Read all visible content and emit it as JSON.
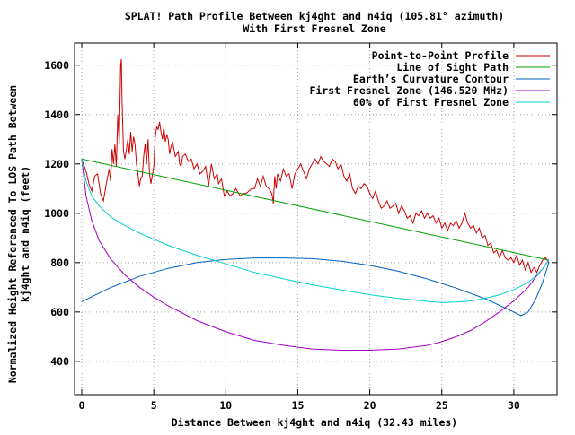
{
  "chart_data": {
    "type": "line",
    "title": "SPLAT! Path Profile Between kj4ght and n4iq (105.81° azimuth)",
    "subtitle": "With First Fresnel Zone",
    "xlabel": "Distance Between kj4ght and n4iq (32.43 miles)",
    "ylabel_line1": "Normalized Height Referenced To LOS Path Between",
    "ylabel_line2": "kj4ght and n4iq (feet)",
    "xlim": [
      -0.5,
      33.0
    ],
    "ylim": [
      265,
      1690
    ],
    "x_ticks": [
      0,
      5,
      10,
      15,
      20,
      25,
      30
    ],
    "y_ticks": [
      400,
      600,
      800,
      1000,
      1200,
      1400,
      1600
    ],
    "grid": true,
    "legend_position": "top-right",
    "series": [
      {
        "name": "Point-to-Point Profile",
        "color": "#cc0000",
        "points": [
          [
            0,
            1220
          ],
          [
            0.3,
            1170
          ],
          [
            0.5,
            1120
          ],
          [
            0.7,
            1090
          ],
          [
            0.9,
            1150
          ],
          [
            1.1,
            1160
          ],
          [
            1.3,
            1080
          ],
          [
            1.5,
            1050
          ],
          [
            1.7,
            1120
          ],
          [
            1.9,
            1180
          ],
          [
            2.0,
            1130
          ],
          [
            2.1,
            1260
          ],
          [
            2.2,
            1200
          ],
          [
            2.3,
            1280
          ],
          [
            2.4,
            1190
          ],
          [
            2.5,
            1400
          ],
          [
            2.6,
            1280
          ],
          [
            2.7,
            1600
          ],
          [
            2.75,
            1625
          ],
          [
            2.8,
            1450
          ],
          [
            2.9,
            1250
          ],
          [
            3.0,
            1220
          ],
          [
            3.2,
            1300
          ],
          [
            3.3,
            1240
          ],
          [
            3.4,
            1330
          ],
          [
            3.5,
            1250
          ],
          [
            3.6,
            1310
          ],
          [
            3.7,
            1280
          ],
          [
            3.8,
            1200
          ],
          [
            3.9,
            1160
          ],
          [
            4.0,
            1110
          ],
          [
            4.1,
            1140
          ],
          [
            4.2,
            1150
          ],
          [
            4.3,
            1230
          ],
          [
            4.4,
            1280
          ],
          [
            4.5,
            1200
          ],
          [
            4.6,
            1300
          ],
          [
            4.7,
            1160
          ],
          [
            4.8,
            1120
          ],
          [
            5.0,
            1190
          ],
          [
            5.1,
            1310
          ],
          [
            5.2,
            1350
          ],
          [
            5.3,
            1340
          ],
          [
            5.4,
            1370
          ],
          [
            5.5,
            1330
          ],
          [
            5.6,
            1300
          ],
          [
            5.7,
            1350
          ],
          [
            5.8,
            1290
          ],
          [
            5.9,
            1320
          ],
          [
            6.0,
            1300
          ],
          [
            6.1,
            1240
          ],
          [
            6.2,
            1270
          ],
          [
            6.3,
            1290
          ],
          [
            6.5,
            1230
          ],
          [
            6.7,
            1250
          ],
          [
            6.8,
            1200
          ],
          [
            6.9,
            1190
          ],
          [
            7.0,
            1230
          ],
          [
            7.2,
            1240
          ],
          [
            7.4,
            1210
          ],
          [
            7.6,
            1220
          ],
          [
            7.8,
            1180
          ],
          [
            8.0,
            1200
          ],
          [
            8.2,
            1160
          ],
          [
            8.4,
            1170
          ],
          [
            8.6,
            1190
          ],
          [
            8.8,
            1110
          ],
          [
            9.0,
            1200
          ],
          [
            9.2,
            1140
          ],
          [
            9.4,
            1160
          ],
          [
            9.5,
            1120
          ],
          [
            9.7,
            1140
          ],
          [
            9.9,
            1070
          ],
          [
            10.1,
            1090
          ],
          [
            10.3,
            1070
          ],
          [
            10.5,
            1080
          ],
          [
            10.7,
            1100
          ],
          [
            10.9,
            1080
          ],
          [
            11.0,
            1070
          ],
          [
            11.2,
            1080
          ],
          [
            11.4,
            1080
          ],
          [
            11.6,
            1090
          ],
          [
            11.8,
            1100
          ],
          [
            12.0,
            1100
          ],
          [
            12.2,
            1140
          ],
          [
            12.4,
            1110
          ],
          [
            12.6,
            1150
          ],
          [
            12.8,
            1110
          ],
          [
            13.0,
            1100
          ],
          [
            13.2,
            1080
          ],
          [
            13.3,
            1040
          ],
          [
            13.4,
            1150
          ],
          [
            13.5,
            1100
          ],
          [
            13.6,
            1160
          ],
          [
            13.8,
            1130
          ],
          [
            14.0,
            1180
          ],
          [
            14.2,
            1150
          ],
          [
            14.4,
            1160
          ],
          [
            14.6,
            1100
          ],
          [
            14.8,
            1160
          ],
          [
            15.0,
            1180
          ],
          [
            15.2,
            1200
          ],
          [
            15.4,
            1170
          ],
          [
            15.6,
            1140
          ],
          [
            15.8,
            1180
          ],
          [
            16.0,
            1200
          ],
          [
            16.2,
            1220
          ],
          [
            16.4,
            1200
          ],
          [
            16.6,
            1230
          ],
          [
            16.8,
            1210
          ],
          [
            17.0,
            1200
          ],
          [
            17.2,
            1190
          ],
          [
            17.4,
            1220
          ],
          [
            17.6,
            1210
          ],
          [
            17.8,
            1180
          ],
          [
            18.0,
            1200
          ],
          [
            18.2,
            1150
          ],
          [
            18.4,
            1130
          ],
          [
            18.6,
            1160
          ],
          [
            18.8,
            1100
          ],
          [
            19.0,
            1080
          ],
          [
            19.2,
            1110
          ],
          [
            19.4,
            1100
          ],
          [
            19.6,
            1120
          ],
          [
            19.8,
            1110
          ],
          [
            20.0,
            1080
          ],
          [
            20.2,
            1060
          ],
          [
            20.4,
            1090
          ],
          [
            20.6,
            1050
          ],
          [
            20.8,
            1020
          ],
          [
            21.0,
            1030
          ],
          [
            21.2,
            1050
          ],
          [
            21.4,
            1020
          ],
          [
            21.6,
            1030
          ],
          [
            21.8,
            1040
          ],
          [
            22.0,
            1000
          ],
          [
            22.2,
            1030
          ],
          [
            22.4,
            1010
          ],
          [
            22.6,
            980
          ],
          [
            22.8,
            990
          ],
          [
            23.0,
            960
          ],
          [
            23.2,
            1000
          ],
          [
            23.4,
            990
          ],
          [
            23.6,
            1010
          ],
          [
            23.8,
            980
          ],
          [
            24.0,
            1000
          ],
          [
            24.2,
            980
          ],
          [
            24.4,
            990
          ],
          [
            24.6,
            960
          ],
          [
            24.8,
            980
          ],
          [
            25.0,
            940
          ],
          [
            25.2,
            960
          ],
          [
            25.4,
            930
          ],
          [
            25.6,
            960
          ],
          [
            25.8,
            950
          ],
          [
            26.0,
            970
          ],
          [
            26.2,
            940
          ],
          [
            26.4,
            960
          ],
          [
            26.6,
            1000
          ],
          [
            26.8,
            960
          ],
          [
            27.0,
            940
          ],
          [
            27.2,
            950
          ],
          [
            27.4,
            920
          ],
          [
            27.6,
            940
          ],
          [
            27.8,
            900
          ],
          [
            28.0,
            910
          ],
          [
            28.2,
            870
          ],
          [
            28.4,
            880
          ],
          [
            28.6,
            840
          ],
          [
            28.8,
            850
          ],
          [
            29.0,
            820
          ],
          [
            29.2,
            850
          ],
          [
            29.4,
            820
          ],
          [
            29.6,
            810
          ],
          [
            29.8,
            820
          ],
          [
            30.0,
            800
          ],
          [
            30.2,
            830
          ],
          [
            30.4,
            790
          ],
          [
            30.6,
            810
          ],
          [
            30.8,
            770
          ],
          [
            31.0,
            800
          ],
          [
            31.2,
            760
          ],
          [
            31.4,
            780
          ],
          [
            31.6,
            760
          ],
          [
            31.8,
            790
          ],
          [
            32.0,
            810
          ],
          [
            32.2,
            820
          ],
          [
            32.43,
            800
          ]
        ]
      },
      {
        "name": "Line of Sight Path",
        "color": "#00a000",
        "points": [
          [
            0,
            1220
          ],
          [
            32.43,
            810
          ]
        ]
      },
      {
        "name": "Earth’s Curvature Contour",
        "color": "#0060c0",
        "points": [
          [
            0,
            642
          ],
          [
            2,
            699
          ],
          [
            4,
            744
          ],
          [
            6,
            777
          ],
          [
            8,
            800
          ],
          [
            10,
            813
          ],
          [
            12,
            819
          ],
          [
            14,
            819
          ],
          [
            16,
            816
          ],
          [
            18,
            806
          ],
          [
            20,
            789
          ],
          [
            22,
            765
          ],
          [
            24,
            734
          ],
          [
            26,
            697
          ],
          [
            28,
            654
          ],
          [
            30,
            600
          ],
          [
            30.5,
            585
          ],
          [
            31,
            600
          ],
          [
            31.5,
            650
          ],
          [
            32,
            720
          ],
          [
            32.43,
            800
          ]
        ]
      },
      {
        "name": "First Fresnel Zone (146.520 MHz)",
        "color": "#a000c0",
        "points": [
          [
            0,
            1220
          ],
          [
            0.3,
            1070
          ],
          [
            0.7,
            970
          ],
          [
            1.2,
            890
          ],
          [
            2,
            815
          ],
          [
            3,
            750
          ],
          [
            4,
            700
          ],
          [
            5,
            660
          ],
          [
            6,
            625
          ],
          [
            8,
            565
          ],
          [
            10,
            520
          ],
          [
            12,
            485
          ],
          [
            14,
            465
          ],
          [
            16,
            450
          ],
          [
            18,
            445
          ],
          [
            20,
            445
          ],
          [
            22,
            450
          ],
          [
            24,
            465
          ],
          [
            25,
            480
          ],
          [
            26,
            500
          ],
          [
            27,
            525
          ],
          [
            28,
            560
          ],
          [
            29,
            600
          ],
          [
            30,
            645
          ],
          [
            31,
            700
          ],
          [
            31.5,
            740
          ],
          [
            32,
            775
          ],
          [
            32.43,
            810
          ]
        ]
      },
      {
        "name": "60% of First Fresnel Zone",
        "color": "#00d0d0",
        "points": [
          [
            0,
            1220
          ],
          [
            0.3,
            1130
          ],
          [
            0.7,
            1070
          ],
          [
            1.2,
            1030
          ],
          [
            2,
            985
          ],
          [
            3,
            950
          ],
          [
            4,
            920
          ],
          [
            5,
            895
          ],
          [
            6,
            870
          ],
          [
            8,
            830
          ],
          [
            10,
            795
          ],
          [
            12,
            760
          ],
          [
            14,
            735
          ],
          [
            16,
            710
          ],
          [
            18,
            690
          ],
          [
            20,
            670
          ],
          [
            22,
            655
          ],
          [
            24,
            643
          ],
          [
            25,
            638
          ],
          [
            26,
            640
          ],
          [
            27,
            645
          ],
          [
            28,
            655
          ],
          [
            29,
            670
          ],
          [
            30,
            690
          ],
          [
            31,
            720
          ],
          [
            31.5,
            745
          ],
          [
            32,
            775
          ],
          [
            32.43,
            810
          ]
        ]
      }
    ]
  }
}
